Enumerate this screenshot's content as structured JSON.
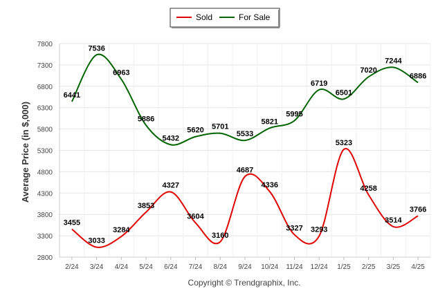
{
  "chart_data": {
    "type": "line",
    "title": "",
    "xlabel": "",
    "ylabel": "Average Price (in $,000)",
    "credit": "Copyright © Trendgraphix, Inc.",
    "categories": [
      "2/24",
      "3/24",
      "4/24",
      "5/24",
      "6/24",
      "7/24",
      "8/24",
      "9/24",
      "10/24",
      "11/24",
      "12/24",
      "1/25",
      "2/25",
      "3/25",
      "4/25"
    ],
    "ylim": [
      2800,
      7800
    ],
    "yticks": [
      2800,
      3300,
      3800,
      4300,
      4800,
      5300,
      5800,
      6300,
      6800,
      7300,
      7800
    ],
    "grid": true,
    "legend_position": "top-center",
    "series": [
      {
        "name": "Sold",
        "color": "#e00000",
        "values": [
          3455,
          3033,
          3284,
          3853,
          4327,
          3604,
          3160,
          4687,
          4336,
          3327,
          3293,
          5323,
          4258,
          3514,
          3766
        ]
      },
      {
        "name": "For Sale",
        "color": "#006400",
        "values": [
          6441,
          7536,
          6963,
          5886,
          5432,
          5620,
          5701,
          5533,
          5821,
          5995,
          6719,
          6501,
          7020,
          7244,
          6886
        ]
      }
    ]
  }
}
